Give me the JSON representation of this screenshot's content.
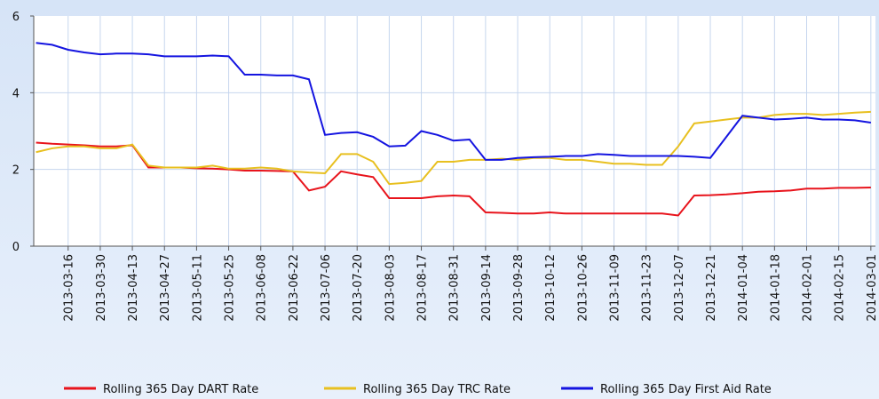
{
  "chart_data": {
    "type": "line",
    "x": [
      "2013-03-02",
      "2013-03-09",
      "2013-03-16",
      "2013-03-23",
      "2013-03-30",
      "2013-04-06",
      "2013-04-13",
      "2013-04-20",
      "2013-04-27",
      "2013-05-04",
      "2013-05-11",
      "2013-05-18",
      "2013-05-25",
      "2013-06-01",
      "2013-06-08",
      "2013-06-15",
      "2013-06-22",
      "2013-06-29",
      "2013-07-06",
      "2013-07-13",
      "2013-07-20",
      "2013-07-27",
      "2013-08-03",
      "2013-08-10",
      "2013-08-17",
      "2013-08-24",
      "2013-08-31",
      "2013-09-07",
      "2013-09-14",
      "2013-09-21",
      "2013-09-28",
      "2013-10-05",
      "2013-10-12",
      "2013-10-19",
      "2013-10-26",
      "2013-11-02",
      "2013-11-09",
      "2013-11-16",
      "2013-11-23",
      "2013-11-30",
      "2013-12-07",
      "2013-12-14",
      "2013-12-21",
      "2013-12-28",
      "2014-01-04",
      "2014-01-11",
      "2014-01-18",
      "2014-01-25",
      "2014-02-01",
      "2014-02-08",
      "2014-02-15",
      "2014-02-22",
      "2014-03-01"
    ],
    "series": [
      {
        "name": "Rolling 365 Day DART Rate",
        "color": "#e8141c",
        "values": [
          2.7,
          2.67,
          2.65,
          2.63,
          2.6,
          2.6,
          2.63,
          2.05,
          2.05,
          2.05,
          2.03,
          2.02,
          2.0,
          1.97,
          1.97,
          1.96,
          1.95,
          1.45,
          1.55,
          1.95,
          1.87,
          1.8,
          1.25,
          1.25,
          1.25,
          1.3,
          1.32,
          1.3,
          0.88,
          0.87,
          0.85,
          0.85,
          0.88,
          0.85,
          0.85,
          0.85,
          0.85,
          0.85,
          0.85,
          0.85,
          0.8,
          1.32,
          1.33,
          1.35,
          1.38,
          1.42,
          1.43,
          1.45,
          1.5,
          1.5,
          1.52,
          1.52,
          1.53
        ]
      },
      {
        "name": "Rolling 365 Day TRC Rate",
        "color": "#e8c020",
        "values": [
          2.45,
          2.55,
          2.6,
          2.6,
          2.55,
          2.55,
          2.65,
          2.1,
          2.05,
          2.05,
          2.05,
          2.1,
          2.02,
          2.02,
          2.05,
          2.02,
          1.95,
          1.92,
          1.9,
          2.4,
          2.4,
          2.2,
          1.62,
          1.65,
          1.7,
          2.2,
          2.2,
          2.25,
          2.25,
          2.28,
          2.25,
          2.3,
          2.3,
          2.25,
          2.25,
          2.2,
          2.15,
          2.15,
          2.12,
          2.12,
          2.6,
          3.2,
          3.25,
          3.3,
          3.35,
          3.35,
          3.42,
          3.45,
          3.45,
          3.42,
          3.45,
          3.48,
          3.5
        ]
      },
      {
        "name": "Rolling 365 Day First Aid Rate",
        "color": "#1414e0",
        "values": [
          5.3,
          5.25,
          5.12,
          5.05,
          5.0,
          5.02,
          5.02,
          5.0,
          4.95,
          4.95,
          4.95,
          4.97,
          4.95,
          4.47,
          4.47,
          4.45,
          4.45,
          4.35,
          2.9,
          2.95,
          2.97,
          2.85,
          2.6,
          2.62,
          3.0,
          2.9,
          2.75,
          2.78,
          2.25,
          2.25,
          2.3,
          2.32,
          2.33,
          2.35,
          2.35,
          2.4,
          2.38,
          2.35,
          2.35,
          2.35,
          2.35,
          2.33,
          2.3,
          2.85,
          3.4,
          3.35,
          3.3,
          3.32,
          3.35,
          3.3,
          3.3,
          3.28,
          3.22
        ]
      }
    ],
    "xlim": [
      "2013-03-01",
      "2014-03-03"
    ],
    "xticks": [
      "2013-03-16",
      "2013-03-30",
      "2013-04-13",
      "2013-04-27",
      "2013-05-11",
      "2013-05-25",
      "2013-06-08",
      "2013-06-22",
      "2013-07-06",
      "2013-07-20",
      "2013-08-03",
      "2013-08-17",
      "2013-08-31",
      "2013-09-14",
      "2013-09-28",
      "2013-10-12",
      "2013-10-26",
      "2013-11-09",
      "2013-11-23",
      "2013-12-07",
      "2013-12-21",
      "2014-01-04",
      "2014-01-18",
      "2014-02-01",
      "2014-02-15",
      "2014-03-01"
    ],
    "ylim": [
      0,
      6
    ],
    "yticks": [
      0,
      2,
      4,
      6
    ],
    "grid": true,
    "legend": "bottom"
  }
}
